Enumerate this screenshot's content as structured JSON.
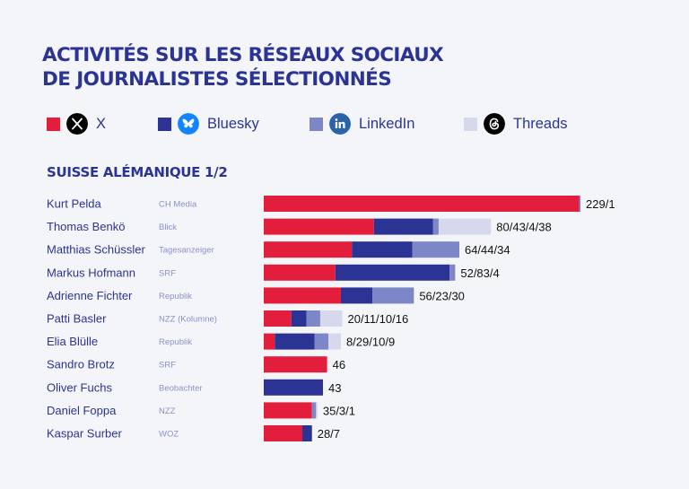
{
  "title": {
    "line1": "ACTIVITÉS SUR LES RÉSEAUX SOCIAUX",
    "line2": "DE JOURNALISTES SÉLECTIONNÉS"
  },
  "legend": [
    {
      "label": "X",
      "color": "#e31d3c",
      "icon": "x-logo-icon"
    },
    {
      "label": "Bluesky",
      "color": "#2b3494",
      "icon": "bluesky-butterfly-icon"
    },
    {
      "label": "LinkedIn",
      "color": "#7d86c6",
      "icon": "linkedin-icon"
    },
    {
      "label": "Threads",
      "color": "#d6d9ec",
      "icon": "threads-icon"
    }
  ],
  "section_title": "SUISSE ALÉMANIQUE  1/2",
  "chart_data": {
    "type": "bar",
    "orientation": "horizontal",
    "stacked": true,
    "categories": [
      "Kurt Pelda",
      "Thomas Benkö",
      "Matthias Schüssler",
      "Markus Hofmann",
      "Adrienne Fichter",
      "Patti Basler",
      "Elia Blülle",
      "Sandro Brotz",
      "Oliver Fuchs",
      "Daniel Foppa",
      "Kaspar Surber"
    ],
    "outlets": [
      "CH Media",
      "Blick",
      "Tagesanzeiger",
      "SRF",
      "Republik",
      "NZZ (Kolumne)",
      "Republik",
      "SRF",
      "Beobachter",
      "NZZ",
      "WOZ"
    ],
    "series": [
      {
        "name": "X",
        "color": "#e31d3c",
        "values": [
          229,
          80,
          64,
          52,
          56,
          20,
          8,
          46,
          0,
          35,
          28
        ]
      },
      {
        "name": "Bluesky",
        "color": "#2b3494",
        "values": [
          0,
          43,
          44,
          83,
          23,
          11,
          29,
          0,
          43,
          0,
          7
        ]
      },
      {
        "name": "LinkedIn",
        "color": "#7d86c6",
        "values": [
          1,
          4,
          34,
          4,
          30,
          10,
          10,
          0,
          0,
          3,
          0
        ]
      },
      {
        "name": "Threads",
        "color": "#d6d9ec",
        "values": [
          0,
          38,
          0,
          0,
          0,
          16,
          9,
          0,
          0,
          1,
          0
        ]
      }
    ],
    "labels": [
      "229/1",
      "80/43/4/38",
      "64/44/34",
      "52/83/4",
      "56/23/30",
      "20/11/10/16",
      "8/29/10/9",
      "46",
      "43",
      "35/3/1",
      "28/7"
    ],
    "grid": false
  }
}
